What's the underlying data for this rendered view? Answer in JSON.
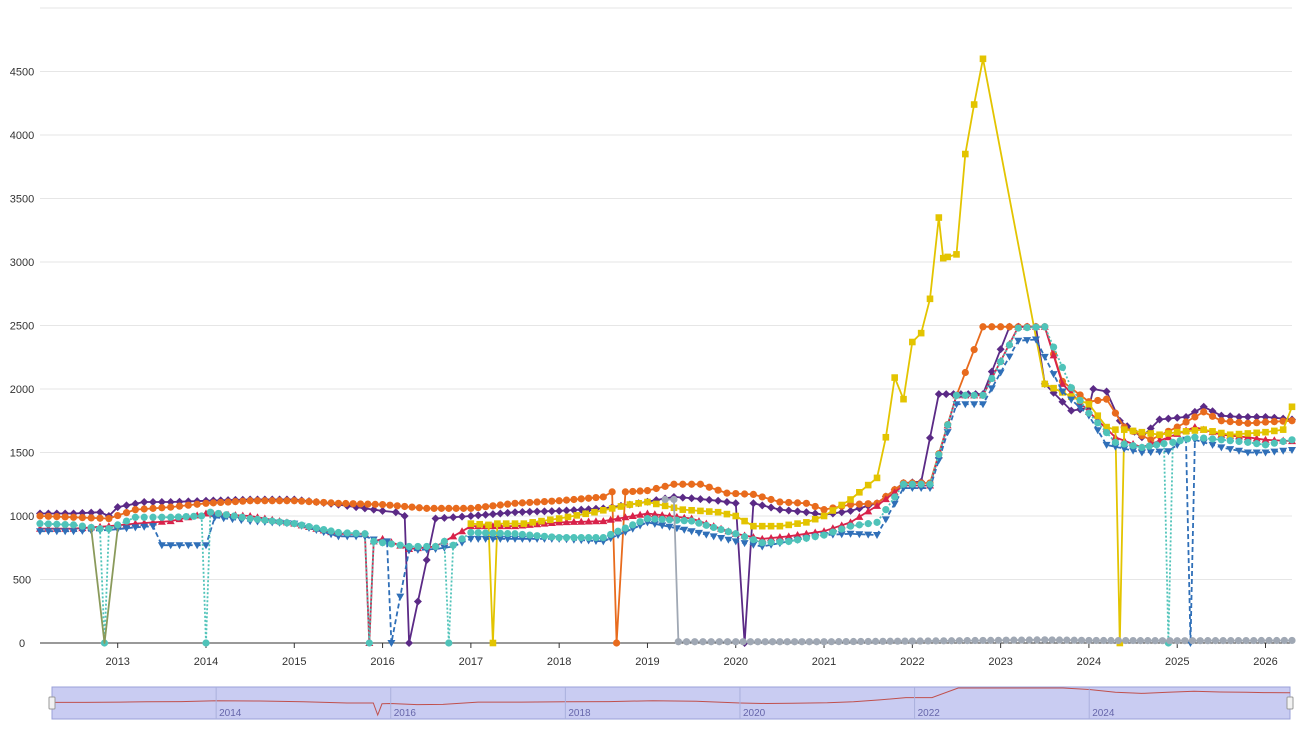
{
  "chart_data": {
    "type": "line",
    "title": "",
    "xlabel": "",
    "ylabel": "",
    "xlim": [
      2012.12,
      2026.3
    ],
    "ylim": [
      0,
      5000
    ],
    "y_ticks": [
      0,
      500,
      1000,
      1500,
      2000,
      2500,
      3000,
      3500,
      4000,
      4500
    ],
    "x_ticks": [
      "2013",
      "2014",
      "2015",
      "2016",
      "2017",
      "2018",
      "2019",
      "2020",
      "2021",
      "2022",
      "2023",
      "2024",
      "2025",
      "2026"
    ],
    "grid": true,
    "legend": "none",
    "series": [
      {
        "color": "#5b2a86",
        "marker": "diamond",
        "dash": "solid",
        "x": [
          2012.12,
          2012.5,
          2012.8,
          2012.9,
          2013.0,
          2013.3,
          2013.6,
          2014.0,
          2014.5,
          2015.0,
          2015.5,
          2015.8,
          2016.0,
          2016.15,
          2016.25,
          2016.3,
          2016.6,
          2017.0,
          2017.5,
          2018.0,
          2018.5,
          2018.9,
          2019.3,
          2019.5,
          2019.8,
          2020.0,
          2020.1,
          2020.2,
          2020.5,
          2020.8,
          2021.0,
          2021.3,
          2021.6,
          2021.9,
          2022.1,
          2022.3,
          2022.8,
          2023.1,
          2023.4,
          2023.5,
          2023.8,
          2024.0,
          2024.05,
          2024.2,
          2024.35,
          2024.6,
          2024.8,
          2025.1,
          2025.3,
          2025.5,
          2025.7,
          2026.0,
          2026.3
        ],
        "y": [
          1020,
          1020,
          1030,
          1000,
          1070,
          1110,
          1110,
          1120,
          1130,
          1130,
          1090,
          1060,
          1040,
          1030,
          1000,
          0,
          980,
          1000,
          1030,
          1040,
          1060,
          1100,
          1150,
          1140,
          1120,
          1100,
          0,
          1100,
          1050,
          1030,
          1010,
          1040,
          1100,
          1260,
          1270,
          1960,
          1960,
          2490,
          2490,
          2040,
          1830,
          1850,
          2000,
          1980,
          1750,
          1620,
          1760,
          1780,
          1860,
          1790,
          1780,
          1780,
          1760
        ]
      },
      {
        "color": "#e86b1d",
        "marker": "circle",
        "dash": "solid",
        "x": [
          2012.12,
          2012.5,
          2012.9,
          2013.2,
          2013.6,
          2014.0,
          2014.5,
          2015.0,
          2015.5,
          2016.0,
          2016.5,
          2017.0,
          2017.5,
          2018.0,
          2018.5,
          2018.6,
          2018.65,
          2018.75,
          2019.0,
          2019.3,
          2019.6,
          2019.9,
          2020.2,
          2020.5,
          2020.8,
          2021.0,
          2021.3,
          2021.6,
          2021.9,
          2022.2,
          2022.5,
          2022.8,
          2023.2,
          2023.5,
          2023.7,
          2024.0,
          2024.2,
          2024.4,
          2024.7,
          2025.0,
          2025.3,
          2025.5,
          2025.8,
          2026.0,
          2026.3
        ],
        "y": [
          1000,
          990,
          980,
          1050,
          1070,
          1100,
          1120,
          1120,
          1100,
          1090,
          1060,
          1060,
          1100,
          1120,
          1150,
          1190,
          0,
          1190,
          1200,
          1250,
          1250,
          1180,
          1170,
          1110,
          1100,
          1050,
          1090,
          1100,
          1260,
          1260,
          1950,
          2490,
          2490,
          2490,
          2060,
          1900,
          1920,
          1700,
          1600,
          1700,
          1820,
          1750,
          1730,
          1740,
          1750
        ]
      },
      {
        "color": "#d8224a",
        "marker": "triangle",
        "dash": "solid",
        "x": [
          2012.12,
          2012.5,
          2012.9,
          2013.2,
          2013.6,
          2014.0,
          2014.5,
          2015.0,
          2015.5,
          2015.8,
          2015.85,
          2015.9,
          2016.0,
          2016.3,
          2016.6,
          2017.0,
          2017.5,
          2018.0,
          2018.5,
          2019.0,
          2019.5,
          2020.0,
          2020.3,
          2020.6,
          2021.0,
          2021.3,
          2021.6,
          2021.9,
          2022.2,
          2022.5,
          2022.8,
          2023.2,
          2023.5,
          2023.7,
          2024.0,
          2024.3,
          2024.6,
          2024.9,
          2025.2,
          2025.5,
          2025.8,
          2026.0,
          2026.3
        ],
        "y": [
          900,
          900,
          920,
          940,
          960,
          1020,
          1000,
          940,
          860,
          860,
          0,
          800,
          820,
          740,
          760,
          920,
          920,
          950,
          960,
          1020,
          980,
          860,
          820,
          840,
          880,
          950,
          1080,
          1240,
          1240,
          1950,
          1950,
          2490,
          2490,
          2040,
          1820,
          1620,
          1540,
          1620,
          1700,
          1640,
          1620,
          1600,
          1590
        ]
      },
      {
        "color": "#e3c400",
        "marker": "square",
        "dash": "solid",
        "x": [
          2017.0,
          2017.2,
          2017.25,
          2017.3,
          2017.6,
          2018.0,
          2018.4,
          2018.8,
          2019.0,
          2019.4,
          2019.8,
          2020.0,
          2020.2,
          2020.5,
          2020.8,
          2021.0,
          2021.3,
          2021.6,
          2021.7,
          2021.8,
          2021.9,
          2022.0,
          2022.1,
          2022.2,
          2022.3,
          2022.35,
          2022.4,
          2022.5,
          2022.6,
          2022.7,
          2022.8,
          2023.5,
          2023.8,
          2024.0,
          2024.2,
          2024.3,
          2024.35,
          2024.4,
          2024.6,
          2024.8,
          2025.0,
          2025.3,
          2025.6,
          2026.0,
          2026.2,
          2026.3
        ],
        "y": [
          940,
          930,
          0,
          940,
          940,
          980,
          1030,
          1090,
          1110,
          1050,
          1030,
          1000,
          920,
          920,
          950,
          1000,
          1130,
          1300,
          1620,
          2090,
          1920,
          2370,
          2440,
          2710,
          3350,
          3030,
          3040,
          3060,
          3850,
          4240,
          4600,
          2040,
          1940,
          1880,
          1700,
          1680,
          0,
          1680,
          1660,
          1640,
          1660,
          1680,
          1640,
          1660,
          1680,
          1860
        ]
      },
      {
        "color": "#2f6fb8",
        "marker": "triangle-down",
        "dash": "dashed",
        "x": [
          2012.12,
          2012.5,
          2012.9,
          2013.2,
          2013.4,
          2013.5,
          2013.8,
          2014.0,
          2014.1,
          2014.5,
          2015.0,
          2015.5,
          2015.8,
          2016.0,
          2016.05,
          2016.1,
          2016.3,
          2016.6,
          2016.8,
          2017.0,
          2017.5,
          2018.0,
          2018.5,
          2019.0,
          2019.5,
          2020.0,
          2020.3,
          2020.6,
          2021.0,
          2021.3,
          2021.6,
          2021.9,
          2022.2,
          2022.5,
          2022.8,
          2023.2,
          2023.4,
          2023.7,
          2024.0,
          2024.2,
          2024.6,
          2024.9,
          2025.0,
          2025.1,
          2025.15,
          2025.2,
          2025.5,
          2025.8,
          2026.0,
          2026.3
        ],
        "y": [
          880,
          880,
          890,
          910,
          920,
          770,
          770,
          770,
          990,
          960,
          940,
          840,
          840,
          790,
          800,
          0,
          730,
          740,
          760,
          820,
          820,
          820,
          800,
          950,
          880,
          800,
          760,
          800,
          850,
          860,
          850,
          1220,
          1220,
          1880,
          1880,
          2380,
          2390,
          1980,
          1790,
          1560,
          1500,
          1510,
          1560,
          1600,
          0,
          1600,
          1540,
          1500,
          1500,
          1520
        ]
      },
      {
        "color": "#4fc3b9",
        "marker": "circle",
        "dash": "dotted",
        "x": [
          2012.12,
          2012.5,
          2012.8,
          2012.85,
          2012.9,
          2013.2,
          2013.6,
          2013.95,
          2014.0,
          2014.05,
          2014.5,
          2015.0,
          2015.5,
          2015.8,
          2015.85,
          2015.9,
          2016.3,
          2016.6,
          2016.7,
          2016.75,
          2016.8,
          2017.0,
          2017.5,
          2018.0,
          2018.5,
          2019.0,
          2019.5,
          2020.0,
          2020.3,
          2020.6,
          2021.0,
          2021.3,
          2021.6,
          2021.9,
          2022.2,
          2022.5,
          2022.8,
          2023.2,
          2023.5,
          2023.8,
          2024.0,
          2024.3,
          2024.6,
          2024.85,
          2024.9,
          2024.95,
          2025.2,
          2025.5,
          2025.8,
          2026.0,
          2026.3
        ],
        "y": [
          940,
          930,
          900,
          0,
          900,
          990,
          990,
          1000,
          0,
          1030,
          980,
          940,
          870,
          860,
          0,
          800,
          760,
          760,
          800,
          0,
          770,
          870,
          860,
          830,
          830,
          980,
          960,
          860,
          790,
          800,
          850,
          920,
          950,
          1250,
          1250,
          1950,
          1950,
          2480,
          2490,
          2010,
          1810,
          1580,
          1540,
          1570,
          0,
          1580,
          1620,
          1600,
          1580,
          1560,
          1600
        ]
      },
      {
        "color": "#8a9a5b",
        "marker": "none",
        "dash": "solid",
        "x": [
          2012.7,
          2012.85,
          2013.0
        ],
        "y": [
          900,
          0,
          900
        ]
      },
      {
        "color": "#a0a8b4",
        "marker": "circle",
        "dash": "solid",
        "x": [
          2019.2,
          2019.3,
          2019.35,
          2020.0,
          2021.0,
          2022.0,
          2022.8,
          2023.5,
          2024.0,
          2025.0,
          2026.3
        ],
        "y": [
          1130,
          1130,
          10,
          10,
          10,
          15,
          20,
          25,
          20,
          18,
          20
        ]
      }
    ],
    "navigator": {
      "x_ticks": [
        "2014",
        "2016",
        "2018",
        "2020",
        "2022",
        "2024",
        "2..."
      ]
    }
  }
}
